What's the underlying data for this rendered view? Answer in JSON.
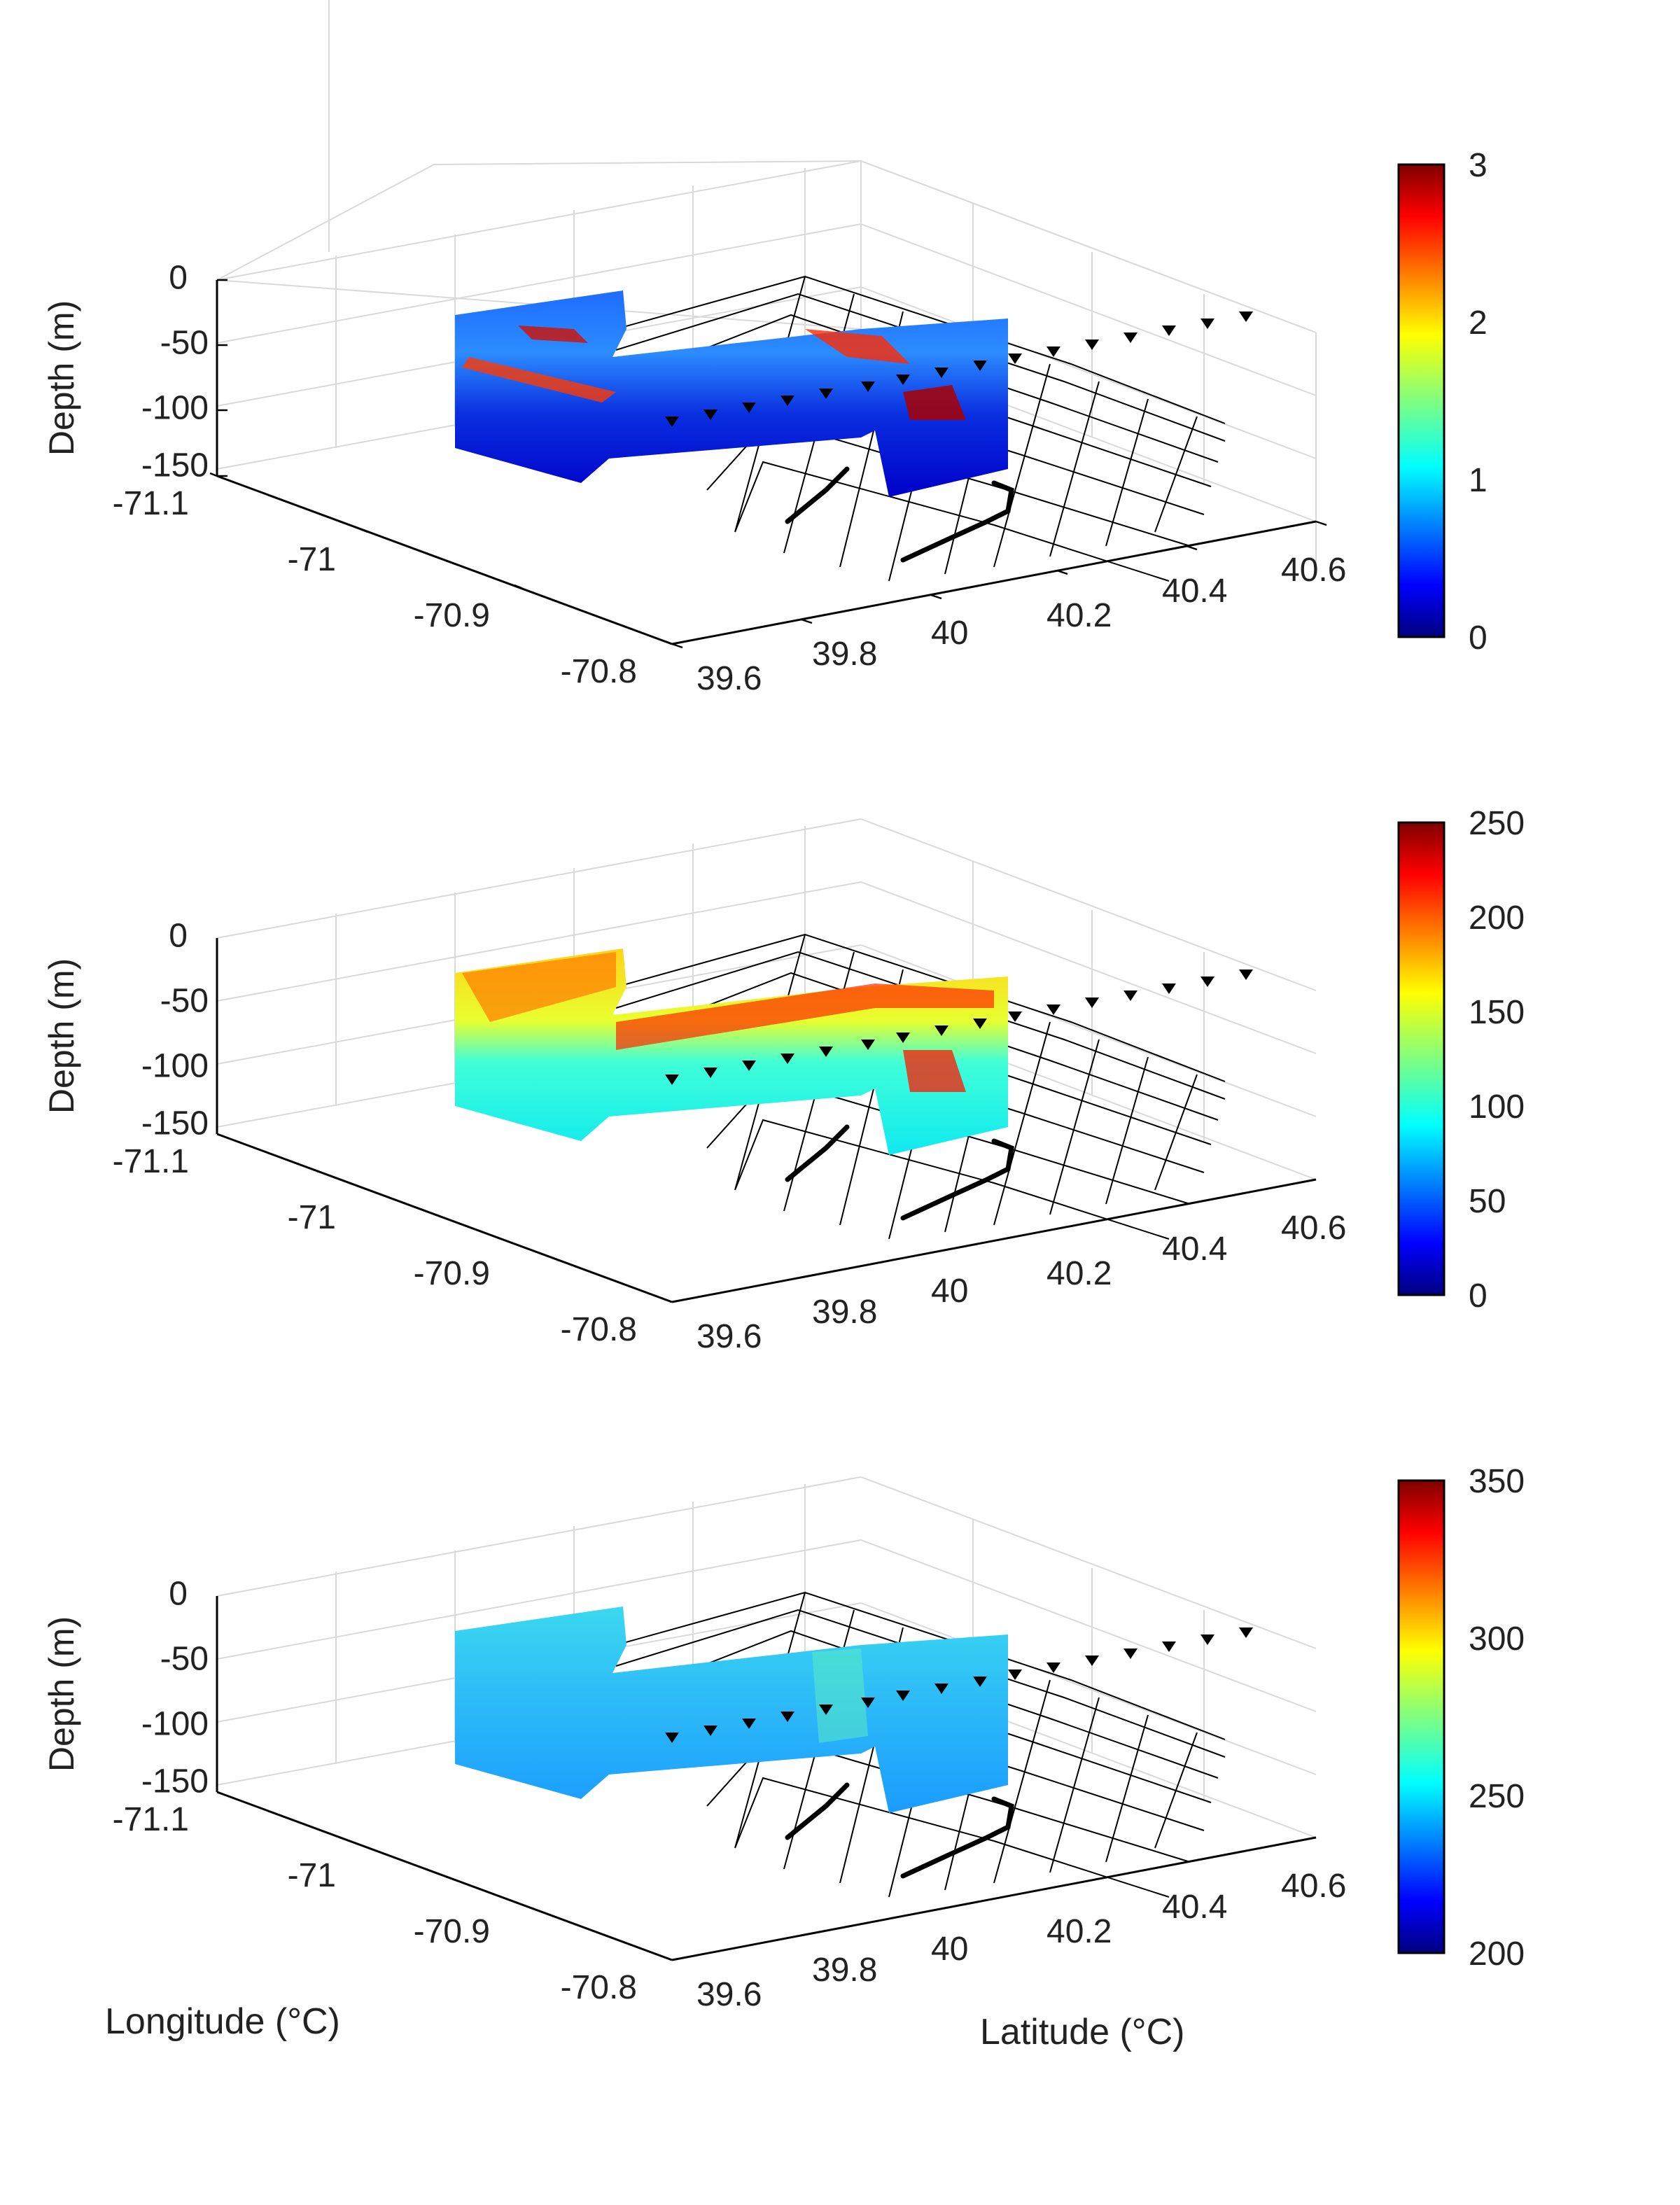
{
  "figure": {
    "xlabel": "Longitude (°C)",
    "ylabel_bottom": "Latitude (°C)"
  },
  "chart_data": [
    {
      "type": "heatmap",
      "zlabel": "Depth (m)",
      "z_ticks": [
        "0",
        "-50",
        "-100",
        "-150"
      ],
      "lon_ticks": [
        "-71.1",
        "-71",
        "-70.9",
        "-70.8"
      ],
      "lat_ticks": [
        "39.6",
        "39.8",
        "40",
        "40.2",
        "40.4",
        "40.6"
      ],
      "zlim": [
        -150,
        0
      ],
      "xlim": [
        -71.1,
        -70.8
      ],
      "ylim": [
        39.6,
        40.6
      ],
      "colorbar": {
        "ticks": [
          "0",
          "1",
          "2",
          "3"
        ],
        "range": [
          0,
          3
        ]
      },
      "colormap": "jet",
      "grid": true
    },
    {
      "type": "heatmap",
      "zlabel": "Depth (m)",
      "z_ticks": [
        "0",
        "-50",
        "-100",
        "-150"
      ],
      "lon_ticks": [
        "-71.1",
        "-71",
        "-70.9",
        "-70.8"
      ],
      "lat_ticks": [
        "39.6",
        "39.8",
        "40",
        "40.2",
        "40.4",
        "40.6"
      ],
      "zlim": [
        -150,
        0
      ],
      "xlim": [
        -71.1,
        -70.8
      ],
      "ylim": [
        39.6,
        40.6
      ],
      "colorbar": {
        "ticks": [
          "0",
          "50",
          "100",
          "150",
          "200",
          "250"
        ],
        "range": [
          0,
          250
        ]
      },
      "colormap": "jet",
      "grid": true
    },
    {
      "type": "heatmap",
      "zlabel": "Depth (m)",
      "z_ticks": [
        "0",
        "-50",
        "-100",
        "-150"
      ],
      "lon_ticks": [
        "-71.1",
        "-71",
        "-70.9",
        "-70.8"
      ],
      "lat_ticks": [
        "39.6",
        "39.8",
        "40",
        "40.2",
        "40.4",
        "40.6"
      ],
      "zlim": [
        -150,
        0
      ],
      "xlim": [
        -71.1,
        -70.8
      ],
      "ylim": [
        39.6,
        40.6
      ],
      "colorbar": {
        "ticks": [
          "200",
          "250",
          "300",
          "350"
        ],
        "range": [
          200,
          350
        ]
      },
      "colormap": "jet",
      "grid": true
    }
  ],
  "colors": {
    "jet": [
      "#00007f",
      "#0000ff",
      "#007fff",
      "#00ffff",
      "#7fff7f",
      "#ffff00",
      "#ff7f00",
      "#ff0000",
      "#7f0000"
    ]
  }
}
